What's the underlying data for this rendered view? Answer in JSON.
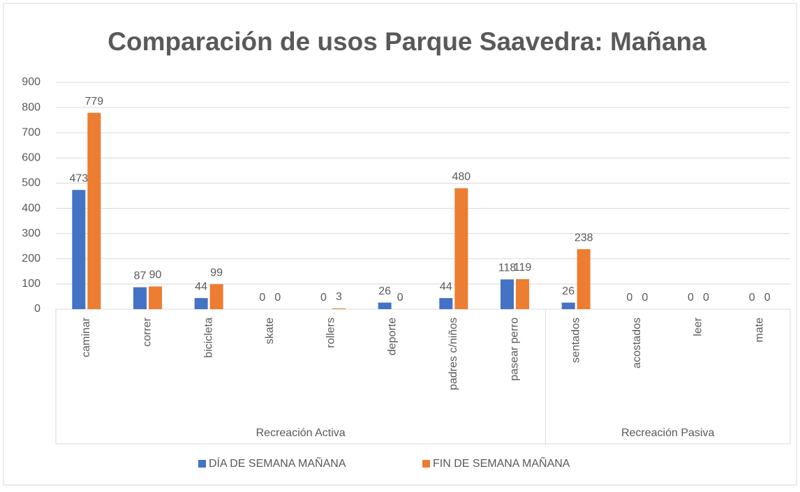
{
  "chart_data": {
    "type": "bar",
    "title": "Comparación de usos Parque Saavedra: Mañana",
    "categories": [
      "caminar",
      "correr",
      "bicicleta",
      "skate",
      "rollers",
      "deporte",
      "padres c/niños",
      "pasear perro",
      "sentados",
      "acostados",
      "leer",
      "mate"
    ],
    "groups": [
      {
        "name": "Recreación Activa",
        "size": 8
      },
      {
        "name": "Recreación Pasiva",
        "size": 4
      }
    ],
    "series": [
      {
        "name": "DÍA DE SEMANA MAÑANA",
        "color": "#4472c4",
        "values": [
          473,
          87,
          44,
          0,
          0,
          26,
          44,
          118,
          26,
          0,
          0,
          0
        ]
      },
      {
        "name": "FIN DE SEMANA MAÑANA",
        "color": "#ed7d31",
        "values": [
          779,
          90,
          99,
          0,
          3,
          0,
          480,
          119,
          238,
          0,
          0,
          0
        ]
      }
    ],
    "ylim": [
      0,
      900
    ],
    "yticks": [
      0,
      100,
      200,
      300,
      400,
      500,
      600,
      700,
      800,
      900
    ],
    "grid": true,
    "data_labels": true,
    "legend": "bottom"
  }
}
